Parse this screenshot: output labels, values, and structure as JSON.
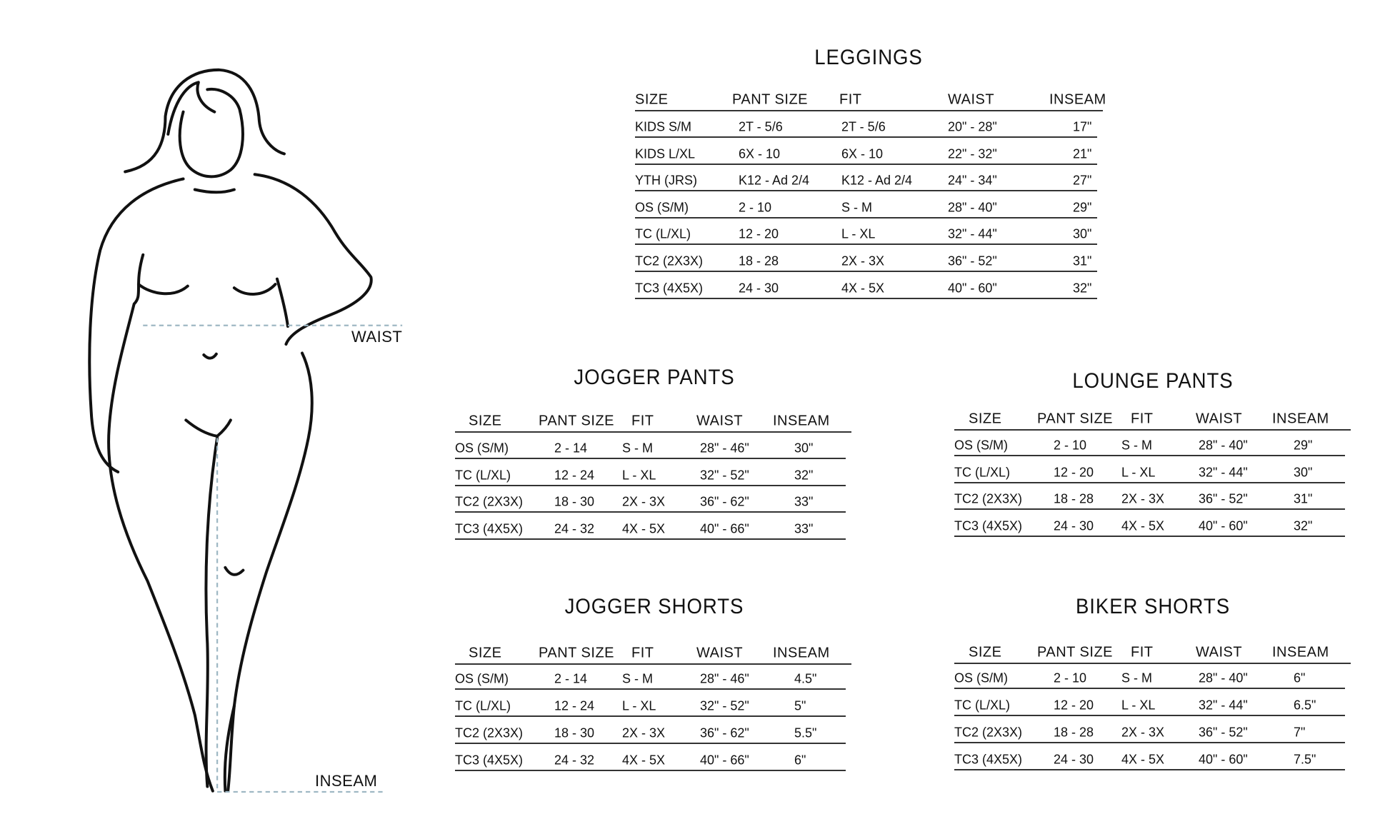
{
  "figure": {
    "waist_label": "WAIST",
    "inseam_label": "INSEAM",
    "guide_color": "#9fb8c4"
  },
  "tables": [
    {
      "id": "leggings",
      "title": "LEGGINGS",
      "headers": [
        "SIZE",
        "PANT SIZE",
        "FIT",
        "WAIST",
        "INSEAM"
      ],
      "rows": [
        [
          "KIDS S/M",
          "2T - 5/6",
          "2T - 5/6",
          "20\" - 28\"",
          "17\""
        ],
        [
          "KIDS L/XL",
          "6X - 10",
          "6X - 10",
          "22\" - 32\"",
          "21\""
        ],
        [
          "YTH (JRS)",
          "K12 - Ad 2/4",
          "K12 - Ad 2/4",
          "24\" - 34\"",
          "27\""
        ],
        [
          "OS (S/M)",
          "2 - 10",
          "S - M",
          "28\" - 40\"",
          "29\""
        ],
        [
          "TC (L/XL)",
          "12 - 20",
          "L - XL",
          "32\" - 44\"",
          "30\""
        ],
        [
          "TC2 (2X3X)",
          "18 - 28",
          "2X - 3X",
          "36\" - 52\"",
          "31\""
        ],
        [
          "TC3 (4X5X)",
          "24 - 30",
          "4X - 5X",
          "40\" - 60\"",
          "32\""
        ]
      ]
    },
    {
      "id": "jogger-pants",
      "title": "JOGGER PANTS",
      "headers": [
        "SIZE",
        "PANT SIZE",
        "FIT",
        "WAIST",
        "INSEAM"
      ],
      "rows": [
        [
          "OS (S/M)",
          "2 - 14",
          "S - M",
          "28\" - 46\"",
          "30\""
        ],
        [
          "TC (L/XL)",
          "12 - 24",
          "L - XL",
          "32\" - 52\"",
          "32\""
        ],
        [
          "TC2 (2X3X)",
          "18 - 30",
          "2X - 3X",
          "36\" - 62\"",
          "33\""
        ],
        [
          "TC3 (4X5X)",
          "24 - 32",
          "4X - 5X",
          "40\" - 66\"",
          "33\""
        ]
      ]
    },
    {
      "id": "lounge-pants",
      "title": "LOUNGE PANTS",
      "headers": [
        "SIZE",
        "PANT SIZE",
        "FIT",
        "WAIST",
        "INSEAM"
      ],
      "rows": [
        [
          "OS (S/M)",
          "2 - 10",
          "S - M",
          "28\" - 40\"",
          "29\""
        ],
        [
          "TC (L/XL)",
          "12 - 20",
          "L - XL",
          "32\" - 44\"",
          "30\""
        ],
        [
          "TC2 (2X3X)",
          "18 - 28",
          "2X - 3X",
          "36\" - 52\"",
          "31\""
        ],
        [
          "TC3 (4X5X)",
          "24 - 30",
          "4X - 5X",
          "40\" - 60\"",
          "32\""
        ]
      ]
    },
    {
      "id": "jogger-shorts",
      "title": "JOGGER SHORTS",
      "headers": [
        "SIZE",
        "PANT SIZE",
        "FIT",
        "WAIST",
        "INSEAM"
      ],
      "rows": [
        [
          "OS (S/M)",
          "2 - 14",
          "S - M",
          "28\" - 46\"",
          "4.5\""
        ],
        [
          "TC (L/XL)",
          "12 - 24",
          "L - XL",
          "32\" - 52\"",
          "5\""
        ],
        [
          "TC2 (2X3X)",
          "18 - 30",
          "2X - 3X",
          "36\" - 62\"",
          "5.5\""
        ],
        [
          "TC3 (4X5X)",
          "24 - 32",
          "4X - 5X",
          "40\" - 66\"",
          "6\""
        ]
      ]
    },
    {
      "id": "biker-shorts",
      "title": "BIKER SHORTS",
      "headers": [
        "SIZE",
        "PANT SIZE",
        "FIT",
        "WAIST",
        "INSEAM"
      ],
      "rows": [
        [
          "OS (S/M)",
          "2 - 10",
          "S - M",
          "28\" - 40\"",
          "6\""
        ],
        [
          "TC (L/XL)",
          "12 - 20",
          "L - XL",
          "32\" - 44\"",
          "6.5\""
        ],
        [
          "TC2 (2X3X)",
          "18 - 28",
          "2X - 3X",
          "36\" - 52\"",
          "7\""
        ],
        [
          "TC3 (4X5X)",
          "24 - 30",
          "4X - 5X",
          "40\" - 60\"",
          "7.5\""
        ]
      ]
    }
  ]
}
